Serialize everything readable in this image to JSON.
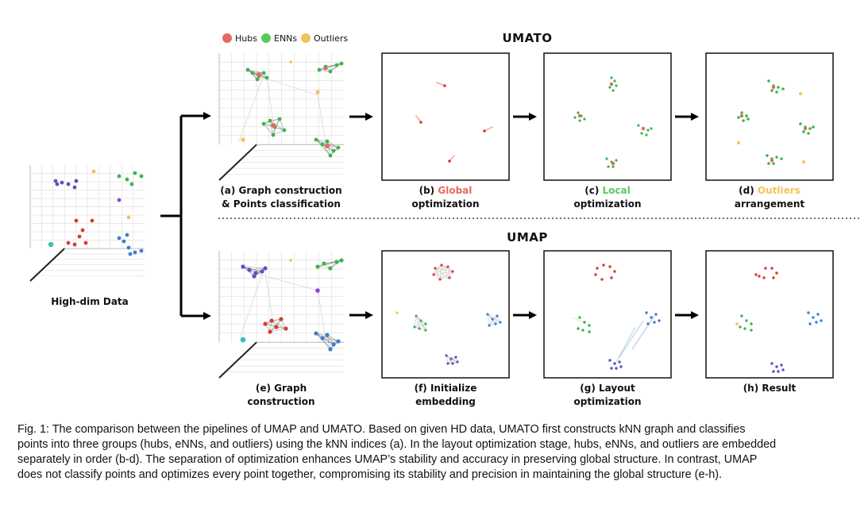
{
  "legend": {
    "items": [
      {
        "label": "Hubs",
        "color": "#e8695e"
      },
      {
        "label": "ENNs",
        "color": "#5cc85c"
      },
      {
        "label": "Outliers",
        "color": "#f5c15a"
      }
    ]
  },
  "colors": {
    "hub": "#e8695e",
    "enn": "#5cc85c",
    "outlier": "#f5c15a",
    "red": "#d93b2f",
    "green": "#3eb44a",
    "blue": "#3d7fd0",
    "purple": "#5a52c2",
    "violet": "#8a45c8",
    "teal": "#3fbfae"
  },
  "titles": {
    "umato": "UMATO",
    "umap": "UMAP"
  },
  "hd_label": "High-dim Data",
  "umato_panels": [
    {
      "line1_pre": "(a) Graph construction",
      "line1_hl": "",
      "line1_post": "",
      "line2": "& Points classification",
      "hl_color": ""
    },
    {
      "line1_pre": "(b) ",
      "line1_hl": "Global",
      "line1_post": "",
      "line2": "optimization",
      "hl_color": "#e8695e"
    },
    {
      "line1_pre": "(c) ",
      "line1_hl": "Local",
      "line1_post": "",
      "line2": "optimization",
      "hl_color": "#5cc85c"
    },
    {
      "line1_pre": "(d) ",
      "line1_hl": "Outliers",
      "line1_post": "",
      "line2": "arrangement",
      "hl_color": "#f5c15a"
    }
  ],
  "umap_panels": [
    {
      "line1": "(e) Graph",
      "line2": "construction"
    },
    {
      "line1": "(f) Initialize",
      "line2": "embedding"
    },
    {
      "line1": "(g) Layout",
      "line2": "optimization"
    },
    {
      "line1": "(h) Result",
      "line2": ""
    }
  ],
  "caption": {
    "lines": [
      "Fig. 1: The comparison between the pipelines of UMAP and UMATO. Based on given HD data, UMATO first constructs kNN graph and classifies",
      "points into three groups (hubs, eNNs, and outliers) using the kNN indices (a). In the layout optimization stage, hubs, eNNs, and outliers are embedded",
      "separately in order (b-d). The separation of optimization enhances UMAP’s stability and accuracy in preserving global structure. In contrast, UMAP",
      "does not classify points and optimizes every point together, compromising its stability and precision in maintaining the global structure (e-h)."
    ]
  }
}
